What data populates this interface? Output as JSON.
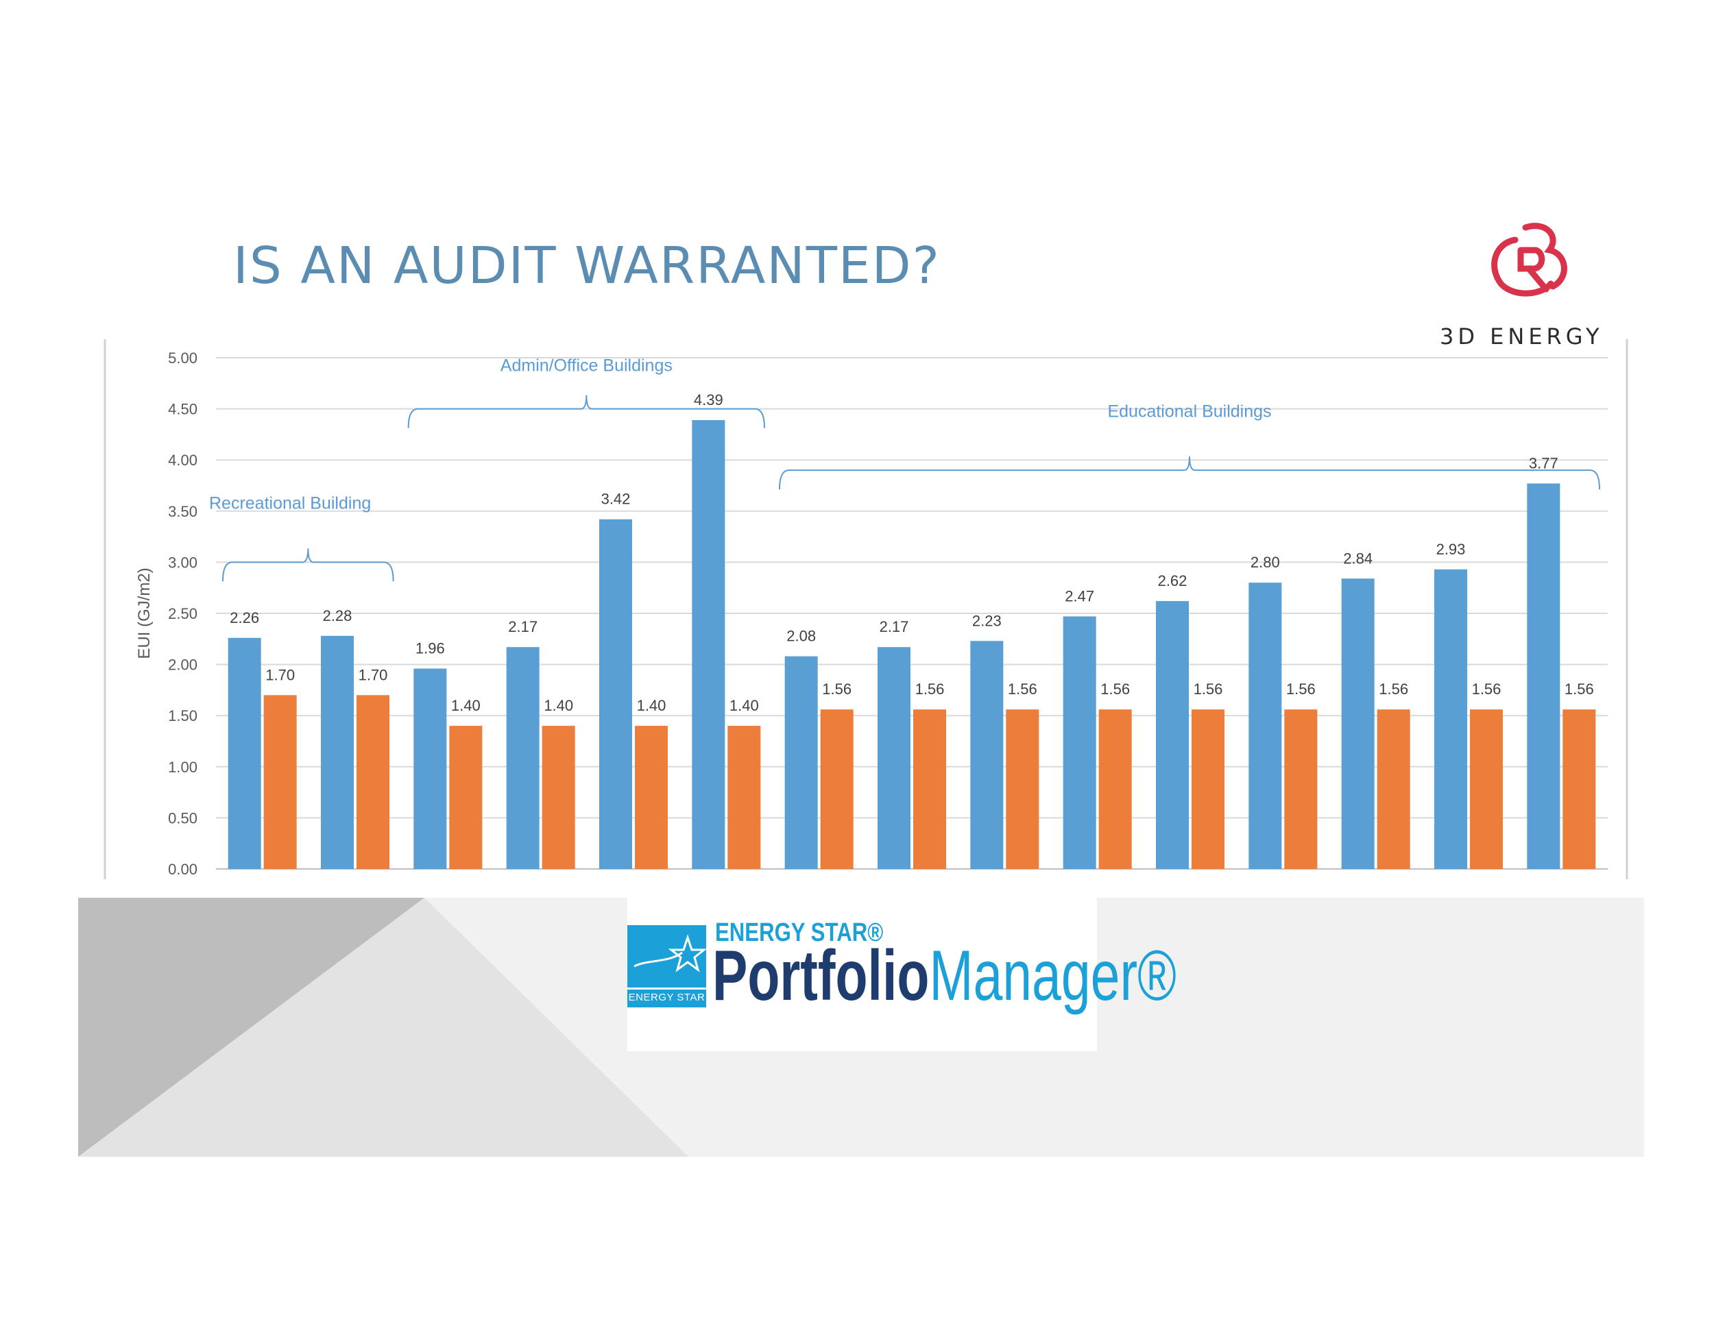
{
  "slide": {
    "title": "IS AN AUDIT WARRANTED?",
    "logo_text": "3D ENERGY",
    "logo_icon": "3d-energy-monogram-icon"
  },
  "footer": {
    "energy_star_top": "ENERGY STAR®",
    "portfolio": "Portfolio",
    "manager": "Manager®",
    "badge_label": "ENERGY STAR",
    "badge_icon": "energy-star-badge-icon"
  },
  "colors": {
    "title": "#5b8db3",
    "series_blue": "#5a9fd4",
    "series_orange": "#ed7d3a",
    "annotation": "#5b9bd5",
    "footer_gray": "#bdbdbd",
    "energy_star_blue": "#1ba0d8",
    "energy_star_navy": "#1f3c6e",
    "logo_red": "#d8334a"
  },
  "chart_data": {
    "type": "bar",
    "ylabel": "EUI (GJ/m2)",
    "xlabel": "",
    "ylim": [
      0,
      5
    ],
    "yticks": [
      "0.00",
      "0.50",
      "1.00",
      "1.50",
      "2.00",
      "2.50",
      "3.00",
      "3.50",
      "4.00",
      "4.50",
      "5.00"
    ],
    "grid": true,
    "categories_count": 15,
    "series": [
      {
        "values": [
          2.26,
          2.28,
          1.96,
          2.17,
          3.42,
          4.39,
          2.08,
          2.17,
          2.23,
          2.47,
          2.62,
          2.8,
          2.84,
          2.93,
          3.77
        ],
        "labels": [
          "2.26",
          "2.28",
          "1.96",
          "2.17",
          "3.42",
          "4.39",
          "2.08",
          "2.17",
          "2.23",
          "2.47",
          "2.62",
          "2.80",
          "2.84",
          "2.93",
          "3.77"
        ]
      },
      {
        "values": [
          1.7,
          1.7,
          1.4,
          1.4,
          1.4,
          1.4,
          1.56,
          1.56,
          1.56,
          1.56,
          1.56,
          1.56,
          1.56,
          1.56,
          1.56
        ],
        "labels": [
          "1.70",
          "1.70",
          "1.40",
          "1.40",
          "1.40",
          "1.40",
          "1.56",
          "1.56",
          "1.56",
          "1.56",
          "1.56",
          "1.56",
          "1.56",
          "1.56",
          "1.56"
        ]
      }
    ],
    "annotations": [
      {
        "text": "Recreational Building",
        "from": 0,
        "to": 1,
        "at": 3.0
      },
      {
        "text": "Admin/Office Buildings",
        "from": 2,
        "to": 5,
        "at": 4.5
      },
      {
        "text": "Educational Buildings",
        "from": 6,
        "to": 14,
        "at": 3.9
      }
    ]
  }
}
